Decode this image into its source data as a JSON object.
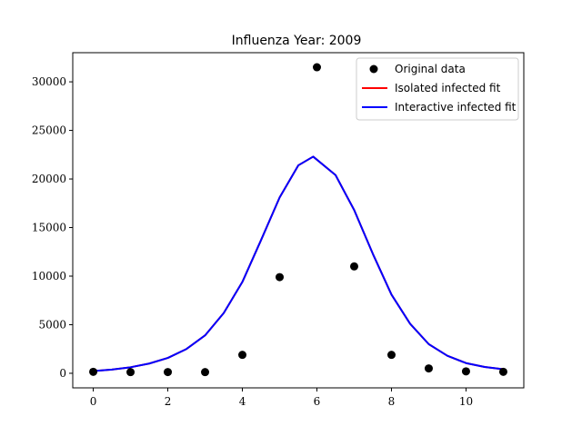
{
  "chart_data": {
    "type": "line",
    "title": "Influenza Year: 2009",
    "xlabel": "",
    "ylabel": "",
    "xlim": [
      -0.55,
      11.55
    ],
    "ylim": [
      -1500,
      33000
    ],
    "xticks": [
      0,
      2,
      4,
      6,
      8,
      10
    ],
    "yticks": [
      0,
      5000,
      10000,
      15000,
      20000,
      25000,
      30000
    ],
    "xtick_labels": [
      "0",
      "2",
      "4",
      "6",
      "8",
      "10"
    ],
    "ytick_labels": [
      "0",
      "5000",
      "10000",
      "15000",
      "20000",
      "25000",
      "30000"
    ],
    "grid": false,
    "legend_position": "top-right",
    "series": [
      {
        "name": "Original data",
        "kind": "scatter",
        "color": "#000000",
        "x": [
          0,
          1,
          2,
          3,
          4,
          5,
          6,
          7,
          8,
          9,
          10,
          11
        ],
        "y": [
          150,
          120,
          130,
          120,
          1900,
          9900,
          31500,
          11000,
          1900,
          500,
          200,
          150
        ]
      },
      {
        "name": "Isolated infected fit",
        "kind": "line",
        "color": "#ff0000",
        "x": [
          0,
          0.5,
          1,
          1.5,
          2,
          2.5,
          3,
          3.5,
          4,
          4.5,
          5,
          5.5,
          5.9,
          6.5,
          7,
          7.5,
          8,
          8.5,
          9,
          9.5,
          10,
          10.5,
          11
        ],
        "y": [
          230,
          380,
          620,
          1000,
          1580,
          2500,
          3900,
          6200,
          9400,
          13700,
          18100,
          21400,
          22300,
          20400,
          16800,
          12300,
          8100,
          5100,
          3000,
          1800,
          1050,
          650,
          420
        ]
      },
      {
        "name": "Interactive infected fit",
        "kind": "line",
        "color": "#0000ff",
        "x": [
          0,
          0.5,
          1,
          1.5,
          2,
          2.5,
          3,
          3.5,
          4,
          4.5,
          5,
          5.5,
          5.9,
          6.5,
          7,
          7.5,
          8,
          8.5,
          9,
          9.5,
          10,
          10.5,
          11
        ],
        "y": [
          230,
          380,
          620,
          1000,
          1580,
          2500,
          3900,
          6200,
          9400,
          13700,
          18100,
          21400,
          22300,
          20400,
          16800,
          12300,
          8100,
          5100,
          3000,
          1800,
          1050,
          650,
          420
        ]
      }
    ]
  }
}
